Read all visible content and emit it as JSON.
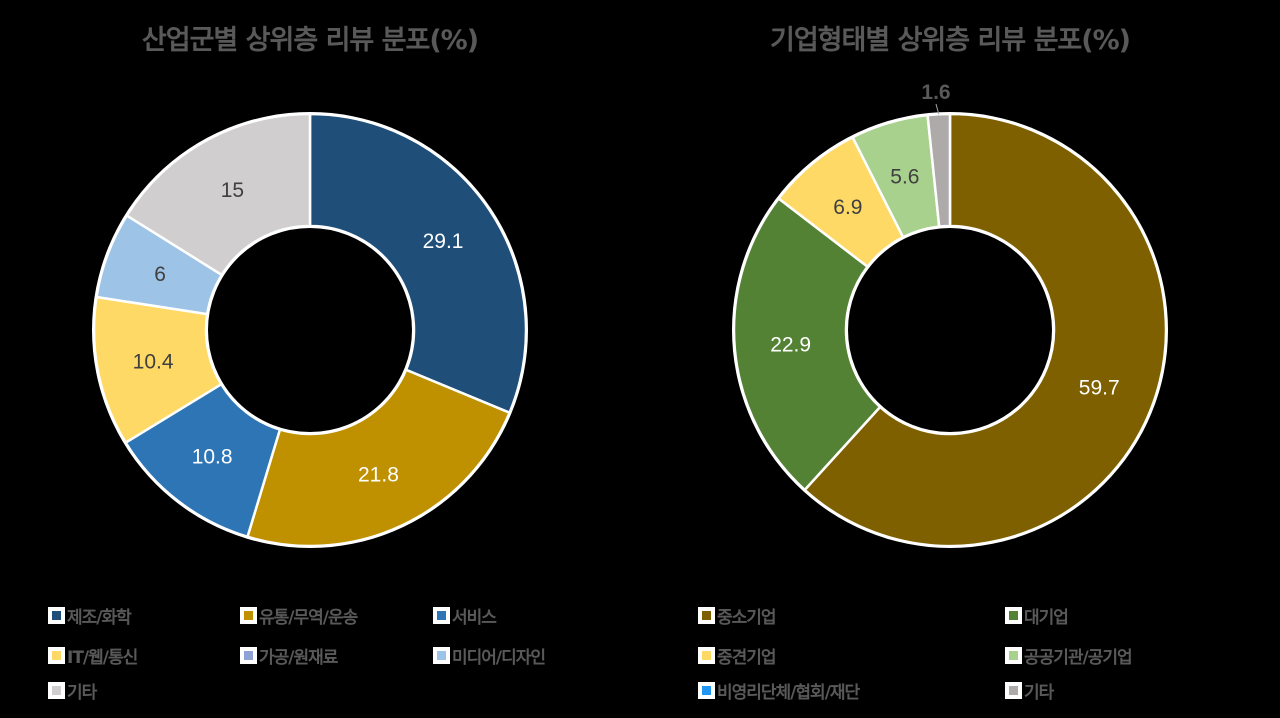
{
  "chart_data": [
    {
      "type": "pie",
      "subtype": "donut",
      "title": "산업군별 상위층 리뷰 분포(%)",
      "categories": [
        "제조/화학",
        "유통/무역/운송",
        "서비스",
        "IT/웹/통신",
        "가공/원재료",
        "미디어/디자인",
        "기타"
      ],
      "values": [
        29.1,
        21.8,
        10.8,
        10.4,
        0,
        6,
        15
      ],
      "colors": [
        "#1F4E79",
        "#BF9000",
        "#2E75B6",
        "#FFD966",
        "#8FA2D4",
        "#9DC3E6",
        "#D0CECE"
      ],
      "label_colors": [
        "#FFFFFF",
        "#FFFFFF",
        "#FFFFFF",
        "#404040",
        "#404040",
        "#404040",
        "#404040"
      ],
      "legend_position": "bottom"
    },
    {
      "type": "pie",
      "subtype": "donut",
      "title": "기업형태별 상위층 리뷰 분포(%)",
      "categories": [
        "중소기업",
        "대기업",
        "중견기업",
        "공공기관/공기업",
        "비영리단체/협회/재단",
        "기타"
      ],
      "values": [
        59.7,
        22.9,
        6.9,
        5.6,
        0,
        1.6
      ],
      "colors": [
        "#7F6000",
        "#548235",
        "#FFD966",
        "#A9D18E",
        "#2196F3",
        "#AEAAAA"
      ],
      "label_colors": [
        "#FFFFFF",
        "#FFFFFF",
        "#404040",
        "#404040",
        "#404040",
        "#595959"
      ],
      "legend_position": "bottom"
    }
  ],
  "left": {
    "title": "산업군별 상위층 리뷰 분포(%)",
    "legend": [
      {
        "label": "제조/화학",
        "color": "#1F4E79"
      },
      {
        "label": "유통/무역/운송",
        "color": "#BF9000"
      },
      {
        "label": "서비스",
        "color": "#2E75B6"
      },
      {
        "label": "IT/웹/통신",
        "color": "#FFD966"
      },
      {
        "label": "가공/원재료",
        "color": "#8FA2D4"
      },
      {
        "label": "미디어/디자인",
        "color": "#9DC3E6"
      },
      {
        "label": "기타",
        "color": "#D0CECE"
      }
    ]
  },
  "right": {
    "title": "기업형태별 상위층 리뷰 분포(%)",
    "legend": [
      {
        "label": "중소기업",
        "color": "#7F6000"
      },
      {
        "label": "대기업",
        "color": "#548235"
      },
      {
        "label": "중견기업",
        "color": "#FFD966"
      },
      {
        "label": "공공기관/공기업",
        "color": "#A9D18E"
      },
      {
        "label": "비영리단체/협회/재단",
        "color": "#2196F3"
      },
      {
        "label": "기타",
        "color": "#AEAAAA"
      }
    ]
  }
}
